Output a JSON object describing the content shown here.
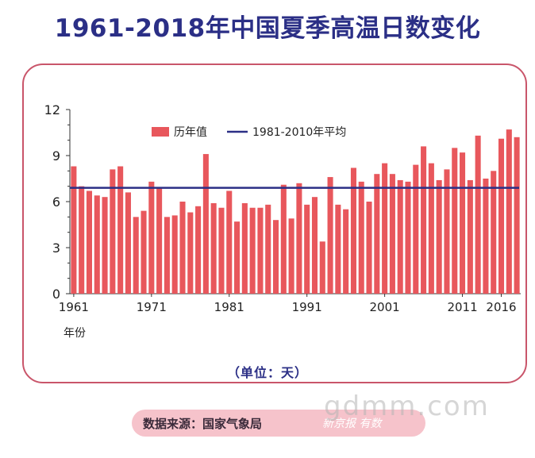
{
  "title": "1961-2018年中国夏季高温日数变化",
  "unit_note": "（单位：天）",
  "source_label": "数据来源：国家气象局",
  "source_logo": "新京报 有数",
  "watermark": "gdmm.com",
  "colors": {
    "bar": "#e8575c",
    "average": "#2b2f86",
    "frame": "#c9556a"
  },
  "chart_data": {
    "type": "bar",
    "title": "1961-2018年中国夏季高温日数变化",
    "xlabel": "年份",
    "ylabel": "",
    "ylim": [
      0,
      12
    ],
    "yticks": [
      0,
      3,
      6,
      9,
      12
    ],
    "xtick_labels": [
      "1961",
      "1971",
      "1981",
      "1991",
      "2001",
      "2011",
      "2016"
    ],
    "legend_position": "top-center",
    "categories": [
      1961,
      1962,
      1963,
      1964,
      1965,
      1966,
      1967,
      1968,
      1969,
      1970,
      1971,
      1972,
      1973,
      1974,
      1975,
      1976,
      1977,
      1978,
      1979,
      1980,
      1981,
      1982,
      1983,
      1984,
      1985,
      1986,
      1987,
      1988,
      1989,
      1990,
      1991,
      1992,
      1993,
      1994,
      1995,
      1996,
      1997,
      1998,
      1999,
      2000,
      2001,
      2002,
      2003,
      2004,
      2005,
      2006,
      2007,
      2008,
      2009,
      2010,
      2011,
      2012,
      2013,
      2014,
      2015,
      2016,
      2017,
      2018
    ],
    "series": [
      {
        "name": "历年值",
        "type": "bar",
        "values": [
          8.3,
          7.0,
          6.7,
          6.4,
          6.3,
          8.1,
          8.3,
          6.6,
          5.0,
          5.4,
          7.3,
          6.9,
          5.0,
          5.1,
          6.0,
          5.3,
          5.7,
          9.1,
          5.9,
          5.6,
          6.7,
          4.7,
          5.9,
          5.6,
          5.6,
          5.8,
          4.8,
          7.1,
          4.9,
          7.2,
          5.8,
          6.3,
          3.4,
          7.6,
          5.8,
          5.5,
          8.2,
          7.3,
          6.0,
          7.8,
          8.5,
          7.8,
          7.4,
          7.3,
          8.4,
          9.6,
          8.5,
          7.4,
          8.1,
          9.5,
          9.2,
          7.4,
          10.3,
          7.5,
          8.0,
          10.1,
          10.7,
          10.2
        ]
      },
      {
        "name": "1981-2010年平均",
        "type": "line",
        "value": 6.9
      }
    ]
  }
}
